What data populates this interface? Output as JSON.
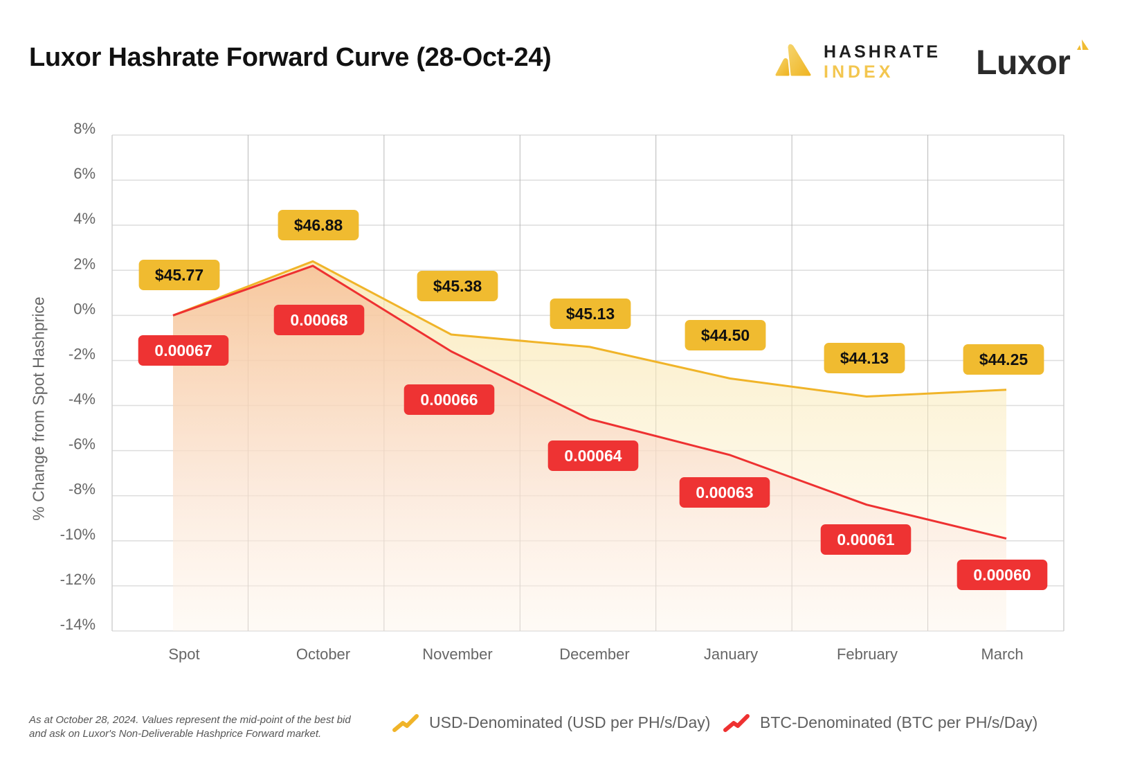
{
  "header": {
    "title": "Luxor Hashrate Forward Curve (28-Oct-24)",
    "logos": {
      "hashrate_index_line1": "HASHRATE",
      "hashrate_index_line2": "INDEX",
      "luxor": "Luxor"
    }
  },
  "colors": {
    "usd_line": "#f0b429",
    "usd_label_bg": "#f0bb30",
    "btc_line": "#ee3131",
    "btc_label_bg": "#ee3333",
    "grid": "#dddddd",
    "axis_text": "#666666"
  },
  "footnote": {
    "line1": "As at October 28, 2024. Values represent the mid-point of the best bid",
    "line2": "and ask on Luxor's Non-Deliverable Hashprice Forward market."
  },
  "legend": {
    "usd": "USD-Denominated (USD per PH/s/Day)",
    "btc": "BTC-Denominated (BTC per PH/s/Day)"
  },
  "chart_data": {
    "type": "area",
    "title": "Luxor Hashrate Forward Curve (28-Oct-24)",
    "xlabel": "",
    "ylabel": "% Change from Spot Hashprice",
    "ylim": [
      -14,
      8
    ],
    "yticks": [
      8,
      6,
      4,
      2,
      0,
      -2,
      -4,
      -6,
      -8,
      -10,
      -12,
      -14
    ],
    "ytick_labels": [
      "8%",
      "6%",
      "4%",
      "2%",
      "0%",
      "-2%",
      "-4%",
      "-6%",
      "-8%",
      "-10%",
      "-12%",
      "-14%"
    ],
    "grid": true,
    "legend_position": "bottom",
    "categories": [
      "Spot",
      "October",
      "November",
      "December",
      "January",
      "February",
      "March"
    ],
    "series": [
      {
        "name": "USD-Denominated (USD per PH/s/Day)",
        "pct_change": [
          0,
          2.4,
          -0.85,
          -1.4,
          -2.8,
          -3.6,
          -3.3
        ],
        "labels": [
          "$45.77",
          "$46.88",
          "$45.38",
          "$45.13",
          "$44.50",
          "$44.13",
          "$44.25"
        ],
        "values": [
          45.77,
          46.88,
          45.38,
          45.13,
          44.5,
          44.13,
          44.25
        ]
      },
      {
        "name": "BTC-Denominated (BTC per PH/s/Day)",
        "pct_change": [
          0,
          2.2,
          -1.6,
          -4.6,
          -6.2,
          -8.4,
          -9.9
        ],
        "labels": [
          "0.00067",
          "0.00068",
          "0.00066",
          "0.00064",
          "0.00063",
          "0.00061",
          "0.00060"
        ],
        "values": [
          0.00067,
          0.00068,
          0.00066,
          0.00064,
          0.00063,
          0.00061,
          0.0006
        ]
      }
    ]
  }
}
